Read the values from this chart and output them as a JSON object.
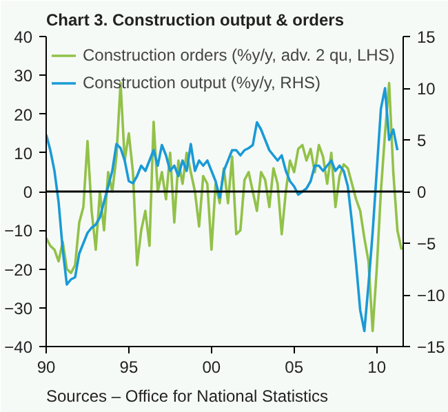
{
  "chart_data": {
    "type": "line",
    "title": "Chart 3. Construction output & orders",
    "annotations": [
      "Sources – Office for National Statistics"
    ],
    "x": [
      1990,
      1990.25,
      1990.5,
      1990.75,
      1991,
      1991.25,
      1991.5,
      1991.75,
      1992,
      1992.25,
      1992.5,
      1992.75,
      1993,
      1993.25,
      1993.5,
      1993.75,
      1994,
      1994.25,
      1994.5,
      1994.75,
      1995,
      1995.25,
      1995.5,
      1995.75,
      1996,
      1996.25,
      1996.5,
      1996.75,
      1997,
      1997.25,
      1997.5,
      1997.75,
      1998,
      1998.25,
      1998.5,
      1998.75,
      1999,
      1999.25,
      1999.5,
      1999.75,
      2000,
      2000.25,
      2000.5,
      2000.75,
      2001,
      2001.25,
      2001.5,
      2001.75,
      2002,
      2002.25,
      2002.5,
      2002.75,
      2003,
      2003.25,
      2003.5,
      2003.75,
      2004,
      2004.25,
      2004.5,
      2004.75,
      2005,
      2005.25,
      2005.5,
      2005.75,
      2006,
      2006.25,
      2006.5,
      2006.75,
      2007,
      2007.25,
      2007.5,
      2007.75,
      2008,
      2008.25,
      2008.5,
      2008.75,
      2009,
      2009.25,
      2009.5,
      2009.75,
      2010,
      2010.25,
      2010.5,
      2010.75,
      2011,
      2011.25,
      2011.5
    ],
    "series": [
      {
        "name": "Construction orders (%y/y, adv. 2 qu, LHS)",
        "color": "#92c148",
        "values": [
          -12,
          -14,
          -15,
          -18,
          -13,
          -20,
          -21,
          -19,
          -8,
          -4,
          13,
          -5,
          -15,
          0,
          -10,
          5,
          0,
          9,
          28,
          8,
          15,
          5,
          -19,
          -10,
          -5,
          -14,
          18,
          0,
          5,
          -2,
          10,
          -8,
          8,
          2,
          10,
          5,
          0,
          -9,
          4,
          2,
          -15,
          2,
          -3,
          6,
          -3,
          9,
          -11,
          -10,
          3,
          5,
          0,
          -5,
          5,
          3,
          -4,
          6,
          2,
          -11,
          0,
          8,
          5,
          11,
          12,
          8,
          11,
          5,
          12,
          9,
          2,
          10,
          -4,
          4,
          7,
          6,
          2,
          -2,
          -5,
          -12,
          -18,
          -36,
          -20,
          0,
          15,
          28,
          5,
          -10,
          -15
        ]
      },
      {
        "name": "Construction output (%y/y, RHS)",
        "color": "#1a9ad6",
        "axis": "y2",
        "values": [
          5.5,
          4,
          2,
          -1,
          -5.6,
          -9,
          -8.5,
          -8.3,
          -6,
          -5,
          -4,
          -3.5,
          -3.2,
          -2.5,
          -1,
          0.5,
          2,
          4.6,
          4.2,
          3,
          1,
          0.8,
          1.5,
          2.5,
          2,
          3,
          4,
          2.5,
          4.5,
          3.5,
          2,
          2.5,
          1.5,
          3,
          2,
          4.6,
          2,
          3,
          2.5,
          3,
          2,
          1,
          -0.6,
          2,
          3,
          4,
          4,
          3.5,
          4,
          4.2,
          4.5,
          6.7,
          6,
          5,
          4,
          3.5,
          3,
          3.5,
          2,
          1,
          0.5,
          -0.3,
          0,
          0.3,
          1,
          2.5,
          2.5,
          2,
          2.5,
          3,
          2,
          2.5,
          2,
          0.5,
          -3,
          -7,
          -11.5,
          -13.5,
          -9,
          -4,
          2,
          8,
          10,
          5,
          6,
          4,
          null
        ]
      }
    ],
    "xlim": [
      1990,
      2011.6
    ],
    "xticks": [
      {
        "value": 1990,
        "label": "90"
      },
      {
        "value": 1995,
        "label": "95"
      },
      {
        "value": 2000,
        "label": "00"
      },
      {
        "value": 2005,
        "label": "05"
      },
      {
        "value": 2010,
        "label": "10"
      }
    ],
    "ylim": [
      -40,
      40
    ],
    "yticks": [
      -40,
      -30,
      -20,
      -10,
      0,
      10,
      20,
      30,
      40
    ],
    "y2lim": [
      -15,
      15
    ],
    "y2ticks": [
      -15,
      -10,
      -5,
      0,
      5,
      10,
      15
    ],
    "ref_lines": [
      {
        "axis": "y",
        "value": 0,
        "color": "#000000"
      }
    ],
    "grid": false,
    "legend": "top left",
    "line_style": "solid"
  }
}
